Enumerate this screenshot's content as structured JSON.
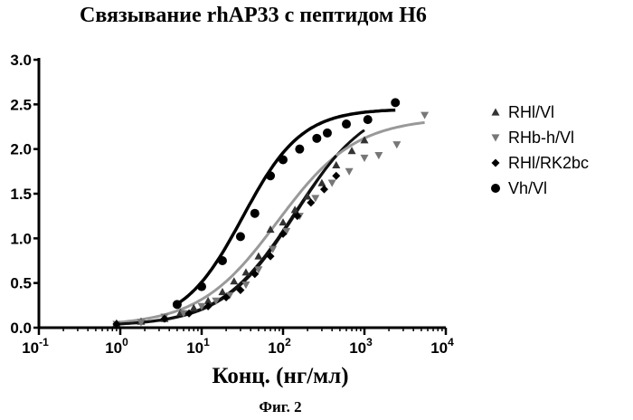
{
  "figure_caption": "Фиг. 2",
  "chart_data": {
    "type": "scatter",
    "title": "Связывание rhAP33 с пептидом H6",
    "xlabel": "Конц. (нг/мл)",
    "ylabel": "",
    "x_scale": "log",
    "xlim": [
      0.1,
      10000
    ],
    "ylim": [
      0,
      3.0
    ],
    "x_ticks": [
      {
        "value": 0.1,
        "base": "10",
        "exp": "-1"
      },
      {
        "value": 1,
        "base": "10",
        "exp": "0"
      },
      {
        "value": 10,
        "base": "10",
        "exp": "1"
      },
      {
        "value": 100,
        "base": "10",
        "exp": "2"
      },
      {
        "value": 1000,
        "base": "10",
        "exp": "3"
      },
      {
        "value": 10000,
        "base": "10",
        "exp": "4"
      }
    ],
    "y_ticks": [
      "0.0",
      "0.5",
      "1.0",
      "1.5",
      "2.0",
      "2.5",
      "3.0"
    ],
    "grid": false,
    "legend_position": "right",
    "series": [
      {
        "name": "RHl/Vl",
        "marker": "triangle-up",
        "line_color": "#111111",
        "x": [
          0.9,
          1.8,
          3.5,
          5.5,
          8,
          12,
          18,
          25,
          35,
          50,
          70,
          100,
          140,
          200,
          300,
          450,
          700,
          1000
        ],
        "y": [
          0.05,
          0.07,
          0.1,
          0.17,
          0.22,
          0.3,
          0.4,
          0.52,
          0.62,
          0.8,
          1.1,
          1.18,
          1.32,
          1.47,
          1.62,
          1.82,
          1.98,
          2.1
        ],
        "fit": {
          "bottom": 0.02,
          "top": 2.55,
          "ec50": 140,
          "hill": 0.95
        }
      },
      {
        "name": "RHb-h/Vl",
        "marker": "triangle-down",
        "line_color": "#999999",
        "x": [
          0.9,
          1.8,
          3.5,
          6,
          10,
          15,
          22,
          35,
          50,
          75,
          110,
          160,
          250,
          400,
          650,
          1000,
          1500,
          2500,
          5500
        ],
        "y": [
          0.04,
          0.06,
          0.12,
          0.16,
          0.24,
          0.3,
          0.36,
          0.48,
          0.65,
          0.88,
          1.08,
          1.25,
          1.45,
          1.62,
          1.75,
          1.9,
          1.93,
          2.05,
          2.38
        ],
        "fit": {
          "bottom": 0.02,
          "top": 2.35,
          "ec50": 85,
          "hill": 0.9
        }
      },
      {
        "name": "RHl/RK2bc",
        "marker": "diamond",
        "line_color": "#111111",
        "x": [
          0.9,
          3.5,
          7,
          12,
          20,
          30,
          45,
          70,
          100,
          150,
          220,
          320,
          450
        ],
        "y": [
          0.04,
          0.1,
          0.16,
          0.24,
          0.34,
          0.42,
          0.6,
          0.8,
          1.05,
          1.25,
          1.4,
          1.55,
          1.7
        ],
        "fit": {
          "bottom": 0.02,
          "top": 2.6,
          "ec50": 150,
          "hill": 0.95
        }
      },
      {
        "name": "Vh/Vl",
        "marker": "circle",
        "line_color": "#000000",
        "x": [
          5,
          10,
          18,
          30,
          45,
          70,
          100,
          160,
          260,
          350,
          600,
          1100,
          2400
        ],
        "y": [
          0.26,
          0.46,
          0.75,
          1.02,
          1.28,
          1.7,
          1.88,
          2.0,
          2.12,
          2.18,
          2.28,
          2.33,
          2.52
        ],
        "fit": {
          "bottom": 0.03,
          "top": 2.45,
          "ec50": 32,
          "hill": 1.2
        }
      }
    ]
  }
}
